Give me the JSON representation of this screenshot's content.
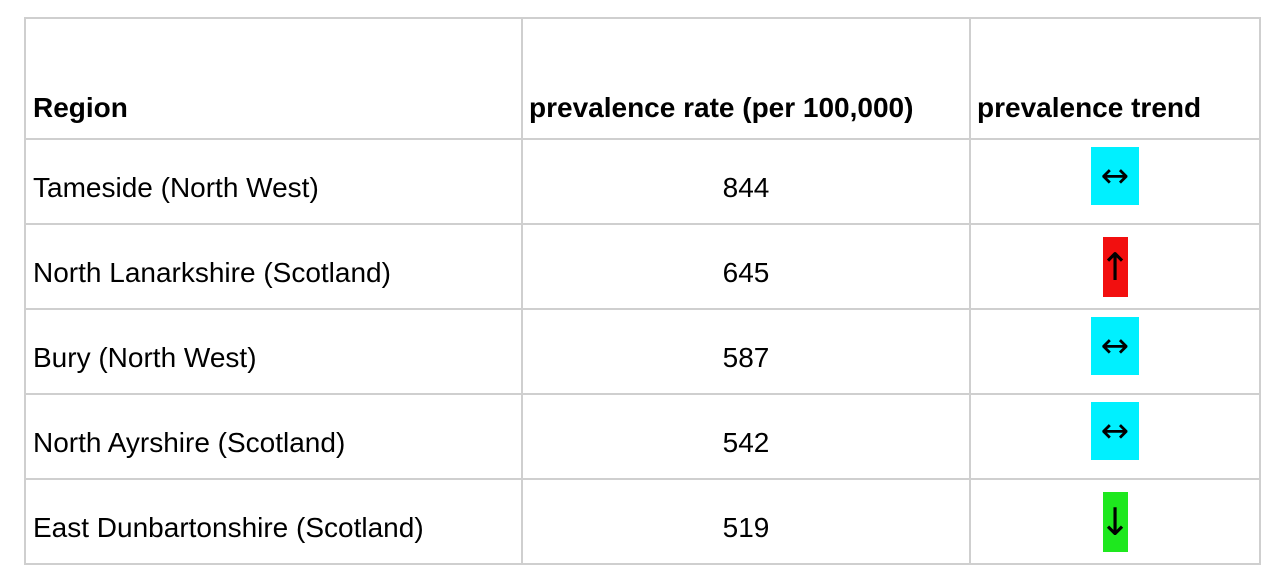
{
  "table": {
    "headers": {
      "region": "Region",
      "rate": "prevalence rate (per 100,000)",
      "trend": "prevalence trend"
    },
    "rows": [
      {
        "region": "Tameside (North West)",
        "rate": "844",
        "trend": {
          "icon": "left-right-arrow-icon",
          "glyph": "↔",
          "color": "#00F0FF"
        }
      },
      {
        "region": "North Lanarkshire (Scotland)",
        "rate": "645",
        "trend": {
          "icon": "up-arrow-icon",
          "glyph": "↑",
          "color": "#F20F0F"
        }
      },
      {
        "region": "Bury (North West)",
        "rate": "587",
        "trend": {
          "icon": "left-right-arrow-icon",
          "glyph": "↔",
          "color": "#00F0FF"
        }
      },
      {
        "region": "North Ayrshire (Scotland)",
        "rate": "542",
        "trend": {
          "icon": "left-right-arrow-icon",
          "glyph": "↔",
          "color": "#00F0FF"
        }
      },
      {
        "region": "East Dunbartonshire (Scotland)",
        "rate": "519",
        "trend": {
          "icon": "down-arrow-icon",
          "glyph": "↓",
          "color": "#1EE81E"
        }
      }
    ]
  }
}
